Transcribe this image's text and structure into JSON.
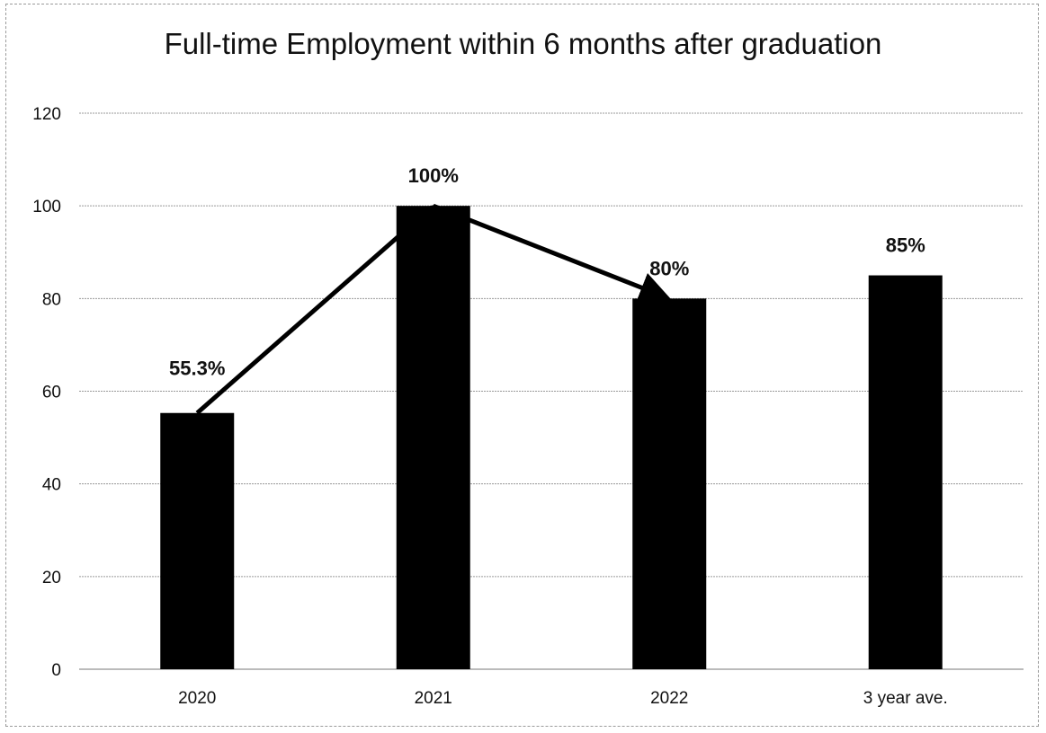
{
  "chart_data": {
    "type": "bar",
    "title": "Full-time Employment within 6 months after graduation",
    "xlabel": "",
    "ylabel": "",
    "categories": [
      "2020",
      "2021",
      "2022",
      "3 year ave."
    ],
    "values": [
      55.3,
      100,
      80,
      85
    ],
    "data_labels": [
      "55.3%",
      "100%",
      "80%",
      "85%"
    ],
    "ylim": [
      0,
      120
    ],
    "yticks": [
      0,
      20,
      40,
      60,
      80,
      100,
      120
    ],
    "grid": true,
    "legend": "none",
    "bar_color": "#000000",
    "trend_arrows": [
      {
        "from": "2020",
        "to": "2021"
      },
      {
        "from": "2021",
        "to": "2022"
      }
    ]
  }
}
